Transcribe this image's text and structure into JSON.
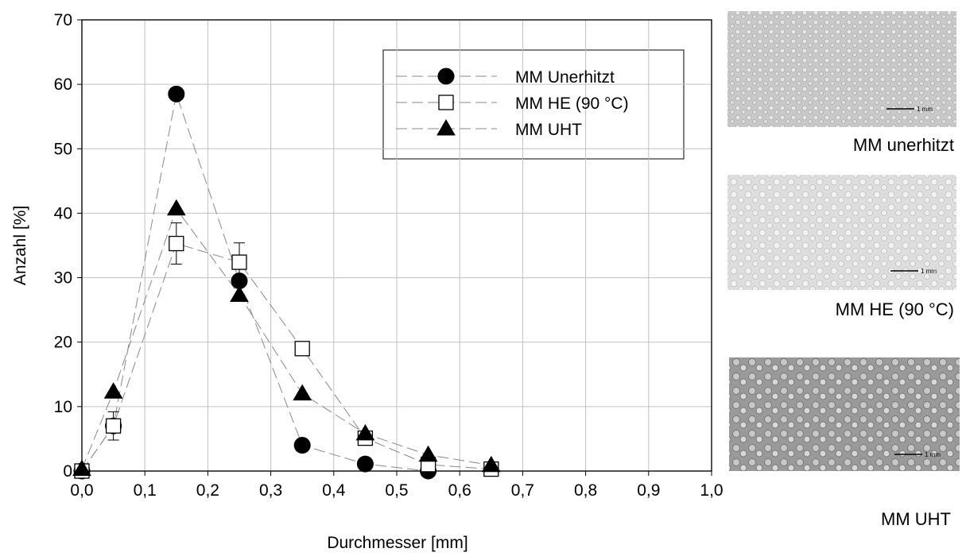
{
  "chart_data": {
    "type": "line",
    "x_label": "Durchmesser [mm]",
    "y_label": "Anzahl [%]",
    "xlim": [
      0,
      1
    ],
    "ylim": [
      0,
      70
    ],
    "xticks": [
      {
        "value": 0,
        "label": "0,0"
      },
      {
        "value": 0.1,
        "label": "0,1"
      },
      {
        "value": 0.2,
        "label": "0,2"
      },
      {
        "value": 0.3,
        "label": "0,3"
      },
      {
        "value": 0.4,
        "label": "0,4"
      },
      {
        "value": 0.5,
        "label": "0,5"
      },
      {
        "value": 0.6,
        "label": "0,6"
      },
      {
        "value": 0.7,
        "label": "0,7"
      },
      {
        "value": 0.8,
        "label": "0,8"
      },
      {
        "value": 0.9,
        "label": "0,9"
      },
      {
        "value": 1,
        "label": "1,0"
      }
    ],
    "yticks": [
      0,
      10,
      20,
      30,
      40,
      50,
      60,
      70
    ],
    "grid": true,
    "legend": "upper right",
    "series": [
      {
        "name": "MM Unerhitzt",
        "color": "#000000",
        "marker": "circle",
        "x": [
          0,
          0.05,
          0.15,
          0.25,
          0.35,
          0.45,
          0.55
        ],
        "values": [
          0,
          7,
          58.5,
          29.5,
          4,
          1.1,
          0
        ]
      },
      {
        "name": "MM HE (90 °C)",
        "color": "#000000",
        "marker": "square",
        "x": [
          0,
          0.05,
          0.15,
          0.25,
          0.35,
          0.45,
          0.55,
          0.65
        ],
        "values": [
          0,
          7,
          35.3,
          32.4,
          19,
          5.1,
          1,
          0.3
        ],
        "errors": [
          0.3,
          2.2,
          3.2,
          3,
          0.8,
          0.5,
          0.3,
          0.3
        ]
      },
      {
        "name": "MM UHT",
        "color": "#000000",
        "marker": "triangle",
        "x": [
          0,
          0.05,
          0.15,
          0.25,
          0.35,
          0.45,
          0.55,
          0.65
        ],
        "values": [
          0.3,
          12.3,
          40.7,
          27.3,
          12,
          5.8,
          2.5,
          0.9
        ]
      }
    ]
  },
  "images": [
    {
      "caption": "MM unerhitzt",
      "scale": "1 mm"
    },
    {
      "caption": "MM HE (90 °C)",
      "scale": "1 mm"
    },
    {
      "caption": "MM UHT",
      "scale": "1 mm"
    }
  ]
}
